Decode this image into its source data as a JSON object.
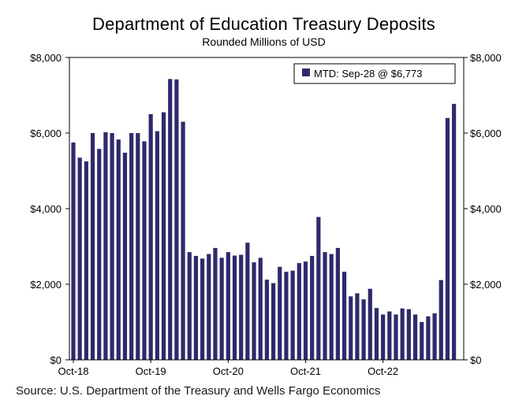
{
  "chart_data": {
    "type": "bar",
    "title": "Department of Education Treasury Deposits",
    "subtitle": "Rounded Millions of USD",
    "source": "Source: U.S. Department of the Treasury and Wells Fargo Economics",
    "legend": {
      "label": "MTD: Sep-28 @ $6,773",
      "placement": "top-right"
    },
    "bar_color": "#2e2a6b",
    "ylim": [
      0,
      8000
    ],
    "y_ticks": [
      "$0",
      "$2,000",
      "$4,000",
      "$6,000",
      "$8,000"
    ],
    "x_tick_labels": [
      {
        "index": 0,
        "label": "Oct-18"
      },
      {
        "index": 12,
        "label": "Oct-19"
      },
      {
        "index": 24,
        "label": "Oct-20"
      },
      {
        "index": 36,
        "label": "Oct-21"
      },
      {
        "index": 48,
        "label": "Oct-22"
      }
    ],
    "categories": [
      "Oct-18",
      "Nov-18",
      "Dec-18",
      "Jan-19",
      "Feb-19",
      "Mar-19",
      "Apr-19",
      "May-19",
      "Jun-19",
      "Jul-19",
      "Aug-19",
      "Sep-19",
      "Oct-19",
      "Nov-19",
      "Dec-19",
      "Jan-20",
      "Feb-20",
      "Mar-20",
      "Apr-20",
      "May-20",
      "Jun-20",
      "Jul-20",
      "Aug-20",
      "Sep-20",
      "Oct-20",
      "Nov-20",
      "Dec-20",
      "Jan-21",
      "Feb-21",
      "Mar-21",
      "Apr-21",
      "May-21",
      "Jun-21",
      "Jul-21",
      "Aug-21",
      "Sep-21",
      "Oct-21",
      "Nov-21",
      "Dec-21",
      "Jan-22",
      "Feb-22",
      "Mar-22",
      "Apr-22",
      "May-22",
      "Jun-22",
      "Jul-22",
      "Aug-22",
      "Sep-22",
      "Oct-22",
      "Nov-22",
      "Dec-22",
      "Jan-23",
      "Feb-23",
      "Mar-23",
      "Apr-23",
      "May-23",
      "Jun-23",
      "Jul-23",
      "Aug-23",
      "Sep-23"
    ],
    "values": [
      5750,
      5350,
      5250,
      6000,
      5580,
      6020,
      6000,
      5830,
      5480,
      6000,
      6000,
      5780,
      6500,
      6050,
      6550,
      7430,
      7420,
      6300,
      2850,
      2750,
      2680,
      2800,
      2960,
      2700,
      2850,
      2760,
      2780,
      3100,
      2580,
      2700,
      2120,
      2030,
      2460,
      2330,
      2360,
      2560,
      2600,
      2750,
      3780,
      2850,
      2800,
      2960,
      2330,
      1680,
      1760,
      1600,
      1880,
      1370,
      1200,
      1280,
      1200,
      1360,
      1340,
      1200,
      1000,
      1150,
      1230,
      2110,
      6400,
      6773
    ]
  }
}
